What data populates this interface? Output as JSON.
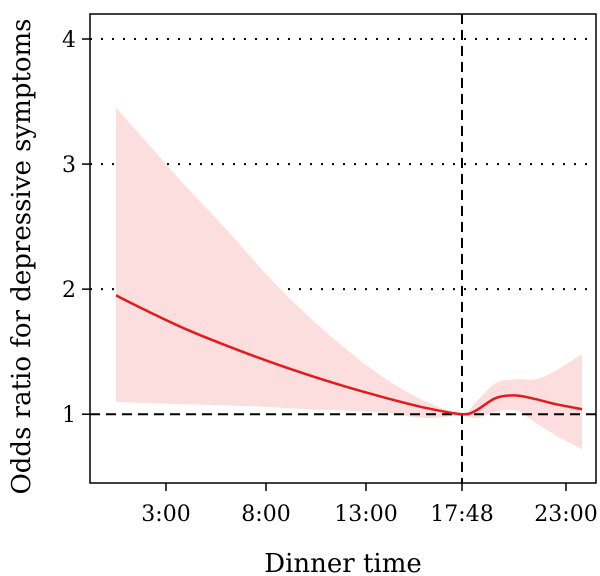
{
  "chart_data": {
    "type": "line",
    "xlabel": "Dinner time",
    "ylabel": "Odds ratio for depressive symptoms",
    "xlim": [
      -0.8,
      24.5
    ],
    "ylim": [
      0.45,
      4.2
    ],
    "x_ticks": [
      {
        "value": 3.0,
        "label": "3:00"
      },
      {
        "value": 8.0,
        "label": "8:00"
      },
      {
        "value": 13.0,
        "label": "13:00"
      },
      {
        "value": 17.8,
        "label": "17:48"
      },
      {
        "value": 23.0,
        "label": "23:00"
      }
    ],
    "y_ticks": [
      {
        "value": 1,
        "label": "1"
      },
      {
        "value": 2,
        "label": "2"
      },
      {
        "value": 3,
        "label": "3"
      },
      {
        "value": 4,
        "label": "4"
      }
    ],
    "grid": "horizontal dotted",
    "reference_lines": {
      "x": 17.8,
      "y": 1
    },
    "series": [
      {
        "color": "#e31a1c",
        "band_color": "#fcdede",
        "points": [
          {
            "x": 0.5,
            "y": 1.95,
            "lower": 1.1,
            "upper": 3.45
          },
          {
            "x": 2.0,
            "y": 1.83,
            "lower": 1.09,
            "upper": 3.18
          },
          {
            "x": 4.0,
            "y": 1.68,
            "lower": 1.08,
            "upper": 2.82
          },
          {
            "x": 6.0,
            "y": 1.55,
            "lower": 1.07,
            "upper": 2.48
          },
          {
            "x": 8.0,
            "y": 1.43,
            "lower": 1.06,
            "upper": 2.12
          },
          {
            "x": 10.0,
            "y": 1.32,
            "lower": 1.04,
            "upper": 1.8
          },
          {
            "x": 12.0,
            "y": 1.22,
            "lower": 1.03,
            "upper": 1.52
          },
          {
            "x": 14.0,
            "y": 1.13,
            "lower": 1.01,
            "upper": 1.28
          },
          {
            "x": 16.0,
            "y": 1.05,
            "lower": 0.97,
            "upper": 1.1
          },
          {
            "x": 17.8,
            "y": 1.0,
            "lower": 0.99,
            "upper": 1.01
          },
          {
            "x": 18.5,
            "y": 1.03,
            "lower": 0.97,
            "upper": 1.1
          },
          {
            "x": 19.5,
            "y": 1.13,
            "lower": 1.02,
            "upper": 1.25
          },
          {
            "x": 20.5,
            "y": 1.15,
            "lower": 1.03,
            "upper": 1.28
          },
          {
            "x": 21.5,
            "y": 1.12,
            "lower": 0.93,
            "upper": 1.28
          },
          {
            "x": 22.5,
            "y": 1.08,
            "lower": 0.83,
            "upper": 1.35
          },
          {
            "x": 23.8,
            "y": 1.04,
            "lower": 0.72,
            "upper": 1.48
          }
        ]
      }
    ]
  }
}
